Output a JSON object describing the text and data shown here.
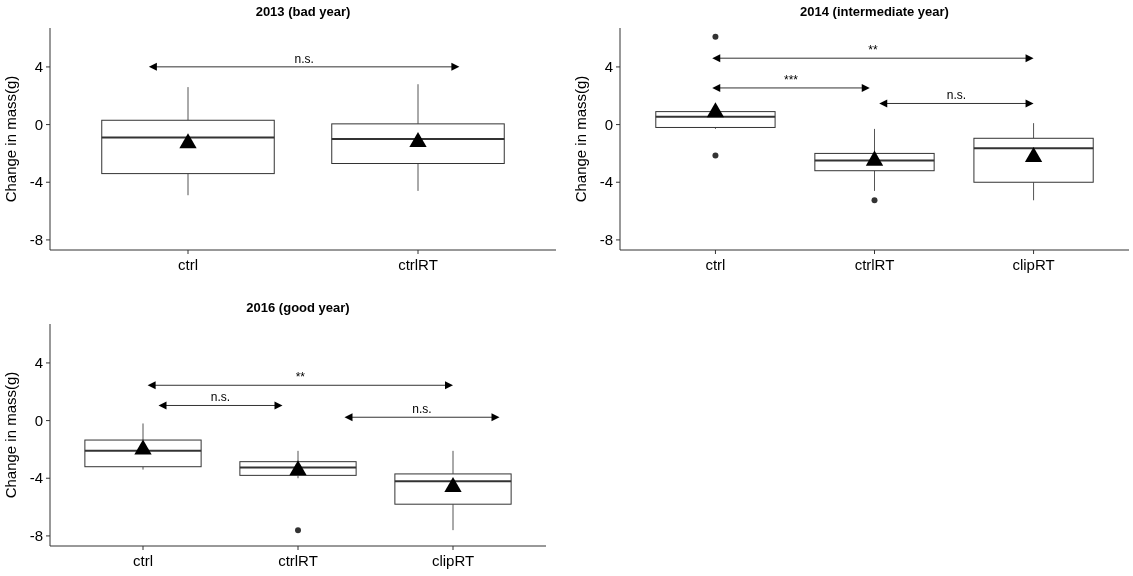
{
  "chart_data": [
    {
      "type": "box",
      "title": "2013 (bad year)",
      "ylabel": "Change in mass(g)",
      "categories": [
        "ctrl",
        "ctrlRT"
      ],
      "ylim": [
        -8.7,
        6.7
      ],
      "yticks": [
        4,
        0,
        -4,
        -8
      ],
      "marker": "triangle",
      "boxes": [
        {
          "low": -4.9,
          "q1": -3.4,
          "median": -0.9,
          "q3": 0.3,
          "high": 2.6,
          "mean": -1.3
        },
        {
          "low": -4.6,
          "q1": -2.7,
          "median": -1.0,
          "q3": 0.05,
          "high": 2.8,
          "mean": -1.2
        }
      ],
      "annotations": [
        "n.s."
      ]
    },
    {
      "type": "box",
      "title": "2014 (intermediate year)",
      "ylabel": "Change in mass(g)",
      "categories": [
        "ctrl",
        "ctrlRT",
        "clipRT"
      ],
      "ylim": [
        -8.7,
        6.7
      ],
      "yticks": [
        4,
        0,
        -4,
        -8
      ],
      "marker": "triangle",
      "boxes": [
        {
          "low": -0.3,
          "q1": -0.2,
          "median": 0.55,
          "q3": 0.9,
          "high": 1.4,
          "mean": 0.85,
          "outliers": [
            6.1,
            -2.15
          ]
        },
        {
          "low": -4.6,
          "q1": -3.2,
          "median": -2.5,
          "q3": -2.0,
          "high": -0.3,
          "mean": -2.5,
          "outliers": [
            -5.25
          ]
        },
        {
          "low": -5.25,
          "q1": -4.0,
          "median": -1.65,
          "q3": -0.95,
          "high": 0.1,
          "mean": -2.25
        }
      ],
      "annotations": [
        "**",
        "***",
        "n.s."
      ]
    },
    {
      "type": "box",
      "title": "2016 (good year)",
      "ylabel": "Change in mass(g)",
      "categories": [
        "ctrl",
        "ctrlRT",
        "clipRT"
      ],
      "ylim": [
        -8.7,
        6.7
      ],
      "yticks": [
        4,
        0,
        -4,
        -8
      ],
      "marker": "triangle",
      "boxes": [
        {
          "low": -3.4,
          "q1": -3.2,
          "median": -2.1,
          "q3": -1.35,
          "high": -0.2,
          "mean": -2.0
        },
        {
          "low": -4.0,
          "q1": -3.8,
          "median": -3.25,
          "q3": -2.85,
          "high": -2.1,
          "mean": -3.45,
          "outliers": [
            -7.6
          ]
        },
        {
          "low": -7.6,
          "q1": -5.8,
          "median": -4.2,
          "q3": -3.7,
          "high": -2.1,
          "mean": -4.6
        }
      ],
      "annotations": [
        "**",
        "n.s.",
        "n.s."
      ]
    }
  ]
}
